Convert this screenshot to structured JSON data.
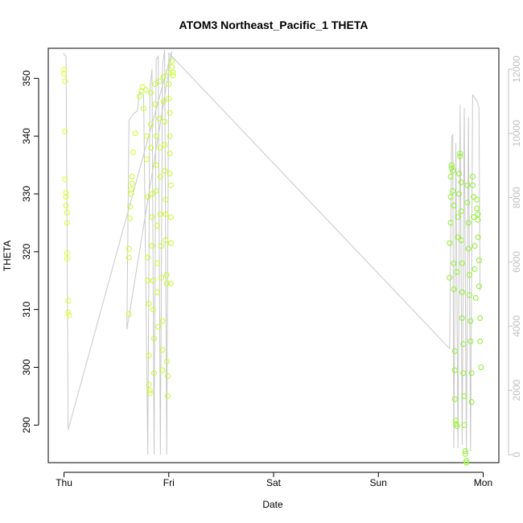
{
  "chart_data": {
    "type": "scatter",
    "title": "ATOM3 Northeast_Pacific_1 THETA",
    "xlabel": "Date",
    "ylabel": "THETA",
    "x_ticks": [
      {
        "x": 0,
        "label": "Thu"
      },
      {
        "x": 1,
        "label": "Fri"
      },
      {
        "x": 2,
        "label": "Sat"
      },
      {
        "x": 3,
        "label": "Sun"
      },
      {
        "x": 4,
        "label": "Mon"
      }
    ],
    "xlim": [
      -0.15,
      4.15
    ],
    "ylim": [
      283.5,
      355.2
    ],
    "y_ticks": [
      290,
      300,
      310,
      320,
      330,
      340,
      350
    ],
    "y2_ticks": [
      0,
      2000,
      4000,
      6000,
      8000,
      10000,
      12000
    ],
    "y2lim": [
      -250,
      12650
    ],
    "grid": false,
    "secondary_line_color": "#c8c8c8",
    "point_color_start": "#d9ff2a",
    "point_color_end": "#8cf02a",
    "theta_points": [
      [
        0.0,
        351.5
      ],
      [
        0.0,
        350.8
      ],
      [
        0.01,
        349.5
      ],
      [
        0.01,
        340.8
      ],
      [
        0.01,
        332.5
      ],
      [
        0.02,
        330.2
      ],
      [
        0.02,
        329.5
      ],
      [
        0.02,
        328.0
      ],
      [
        0.03,
        326.8
      ],
      [
        0.03,
        325.0
      ],
      [
        0.03,
        319.8
      ],
      [
        0.03,
        318.8
      ],
      [
        0.04,
        311.5
      ],
      [
        0.04,
        309.5
      ],
      [
        0.05,
        309.0
      ],
      [
        0.62,
        309.2
      ],
      [
        0.62,
        319.0
      ],
      [
        0.62,
        320.5
      ],
      [
        0.63,
        325.8
      ],
      [
        0.63,
        327.8
      ],
      [
        0.64,
        330.0
      ],
      [
        0.64,
        330.8
      ],
      [
        0.65,
        331.8
      ],
      [
        0.65,
        333.0
      ],
      [
        0.66,
        337.2
      ],
      [
        0.68,
        340.5
      ],
      [
        0.72,
        346.8
      ],
      [
        0.74,
        347.8
      ],
      [
        0.75,
        348.5
      ],
      [
        0.76,
        344.8
      ],
      [
        0.78,
        348.0
      ],
      [
        0.79,
        340.0
      ],
      [
        0.79,
        336.0
      ],
      [
        0.8,
        329.5
      ],
      [
        0.8,
        319.0
      ],
      [
        0.8,
        315.0
      ],
      [
        0.81,
        311.0
      ],
      [
        0.81,
        302.0
      ],
      [
        0.81,
        297.0
      ],
      [
        0.82,
        296.0
      ],
      [
        0.82,
        295.5
      ],
      [
        0.83,
        347.5
      ],
      [
        0.83,
        342.0
      ],
      [
        0.83,
        338.0
      ],
      [
        0.84,
        330.0
      ],
      [
        0.84,
        326.0
      ],
      [
        0.84,
        321.0
      ],
      [
        0.85,
        315.0
      ],
      [
        0.85,
        310.0
      ],
      [
        0.86,
        305.0
      ],
      [
        0.86,
        299.0
      ],
      [
        0.87,
        349.0
      ],
      [
        0.87,
        345.5
      ],
      [
        0.88,
        340.0
      ],
      [
        0.88,
        335.0
      ],
      [
        0.88,
        330.5
      ],
      [
        0.89,
        324.5
      ],
      [
        0.89,
        318.0
      ],
      [
        0.89,
        313.0
      ],
      [
        0.9,
        307.0
      ],
      [
        0.91,
        349.5
      ],
      [
        0.91,
        343.0
      ],
      [
        0.92,
        338.0
      ],
      [
        0.92,
        333.0
      ],
      [
        0.92,
        326.5
      ],
      [
        0.93,
        321.0
      ],
      [
        0.93,
        315.5
      ],
      [
        0.94,
        308.0
      ],
      [
        0.94,
        303.0
      ],
      [
        0.94,
        299.5
      ],
      [
        0.95,
        350.2
      ],
      [
        0.95,
        346.0
      ],
      [
        0.96,
        342.5
      ],
      [
        0.96,
        338.5
      ],
      [
        0.96,
        334.0
      ],
      [
        0.97,
        329.0
      ],
      [
        0.97,
        326.5
      ],
      [
        0.97,
        322.0
      ],
      [
        0.98,
        316.0
      ],
      [
        0.98,
        314.5
      ],
      [
        0.98,
        301.0
      ],
      [
        0.99,
        298.5
      ],
      [
        0.99,
        295.0
      ],
      [
        1.0,
        351.0
      ],
      [
        1.0,
        349.0
      ],
      [
        1.0,
        346.5
      ],
      [
        1.01,
        344.0
      ],
      [
        1.01,
        340.0
      ],
      [
        1.01,
        337.0
      ],
      [
        1.01,
        333.5
      ],
      [
        1.02,
        331.5
      ],
      [
        1.02,
        326.0
      ],
      [
        1.02,
        321.5
      ],
      [
        1.02,
        314.5
      ],
      [
        1.03,
        353.0
      ],
      [
        1.03,
        352.0
      ],
      [
        1.04,
        351.0
      ],
      [
        1.04,
        350.5
      ],
      [
        3.68,
        321.5
      ],
      [
        3.68,
        315.5
      ],
      [
        3.69,
        325.0
      ],
      [
        3.69,
        329.5
      ],
      [
        3.69,
        333.0
      ],
      [
        3.7,
        334.5
      ],
      [
        3.7,
        335.0
      ],
      [
        3.71,
        334.0
      ],
      [
        3.71,
        330.5
      ],
      [
        3.72,
        328.0
      ],
      [
        3.72,
        318.0
      ],
      [
        3.72,
        313.5
      ],
      [
        3.73,
        302.8
      ],
      [
        3.73,
        299.5
      ],
      [
        3.73,
        294.5
      ],
      [
        3.74,
        290.8
      ],
      [
        3.74,
        290.2
      ],
      [
        3.75,
        289.8
      ],
      [
        3.75,
        316.5
      ],
      [
        3.76,
        322.5
      ],
      [
        3.76,
        326.0
      ],
      [
        3.77,
        330.0
      ],
      [
        3.77,
        333.5
      ],
      [
        3.78,
        337.0
      ],
      [
        3.78,
        336.5
      ],
      [
        3.79,
        332.0
      ],
      [
        3.79,
        327.0
      ],
      [
        3.79,
        322.0
      ],
      [
        3.8,
        318.0
      ],
      [
        3.8,
        313.0
      ],
      [
        3.8,
        308.5
      ],
      [
        3.81,
        304.0
      ],
      [
        3.81,
        299.0
      ],
      [
        3.82,
        295.0
      ],
      [
        3.82,
        290.0
      ],
      [
        3.83,
        285.5
      ],
      [
        3.83,
        285.0
      ],
      [
        3.84,
        283.8
      ],
      [
        3.84,
        283.5
      ],
      [
        3.85,
        331.5
      ],
      [
        3.85,
        328.5
      ],
      [
        3.86,
        325.0
      ],
      [
        3.86,
        320.5
      ],
      [
        3.87,
        316.0
      ],
      [
        3.87,
        312.5
      ],
      [
        3.88,
        308.0
      ],
      [
        3.88,
        304.5
      ],
      [
        3.89,
        299.0
      ],
      [
        3.89,
        294.0
      ],
      [
        3.9,
        333.0
      ],
      [
        3.9,
        331.5
      ],
      [
        3.91,
        329.5
      ],
      [
        3.91,
        326.0
      ],
      [
        3.92,
        321.0
      ],
      [
        3.92,
        317.0
      ],
      [
        3.93,
        312.0
      ],
      [
        3.94,
        329.0
      ],
      [
        3.94,
        327.5
      ],
      [
        3.95,
        326.5
      ],
      [
        3.95,
        325.5
      ],
      [
        3.95,
        322.5
      ],
      [
        3.96,
        318.5
      ],
      [
        3.96,
        314.0
      ],
      [
        3.97,
        308.5
      ],
      [
        3.97,
        304.5
      ],
      [
        3.98,
        300.0
      ]
    ],
    "depth_line": [
      [
        0.0,
        12500
      ],
      [
        0.0,
        12450
      ],
      [
        0.02,
        12400
      ],
      [
        0.04,
        770
      ],
      [
        1.03,
        12550
      ],
      [
        0.6,
        3900
      ],
      [
        0.62,
        10400
      ],
      [
        0.66,
        10600
      ],
      [
        0.7,
        10700
      ],
      [
        0.72,
        11300
      ],
      [
        0.76,
        11200
      ],
      [
        0.8,
        0
      ],
      [
        0.82,
        11400
      ],
      [
        0.84,
        12000
      ],
      [
        0.86,
        0
      ],
      [
        0.88,
        12300
      ],
      [
        0.9,
        12400
      ],
      [
        0.92,
        0
      ],
      [
        0.94,
        12100
      ],
      [
        0.96,
        12600
      ],
      [
        0.98,
        0
      ],
      [
        1.0,
        12500
      ],
      [
        3.68,
        3300
      ],
      [
        3.7,
        9900
      ],
      [
        3.71,
        9950
      ],
      [
        3.72,
        200
      ],
      [
        3.74,
        9700
      ],
      [
        3.76,
        200
      ],
      [
        3.78,
        10900
      ],
      [
        3.8,
        300
      ],
      [
        3.82,
        10800
      ],
      [
        3.84,
        100
      ],
      [
        3.86,
        10500
      ],
      [
        3.88,
        100
      ],
      [
        3.9,
        11200
      ],
      [
        3.94,
        11000
      ],
      [
        3.96,
        10800
      ],
      [
        3.97,
        5100
      ]
    ]
  }
}
